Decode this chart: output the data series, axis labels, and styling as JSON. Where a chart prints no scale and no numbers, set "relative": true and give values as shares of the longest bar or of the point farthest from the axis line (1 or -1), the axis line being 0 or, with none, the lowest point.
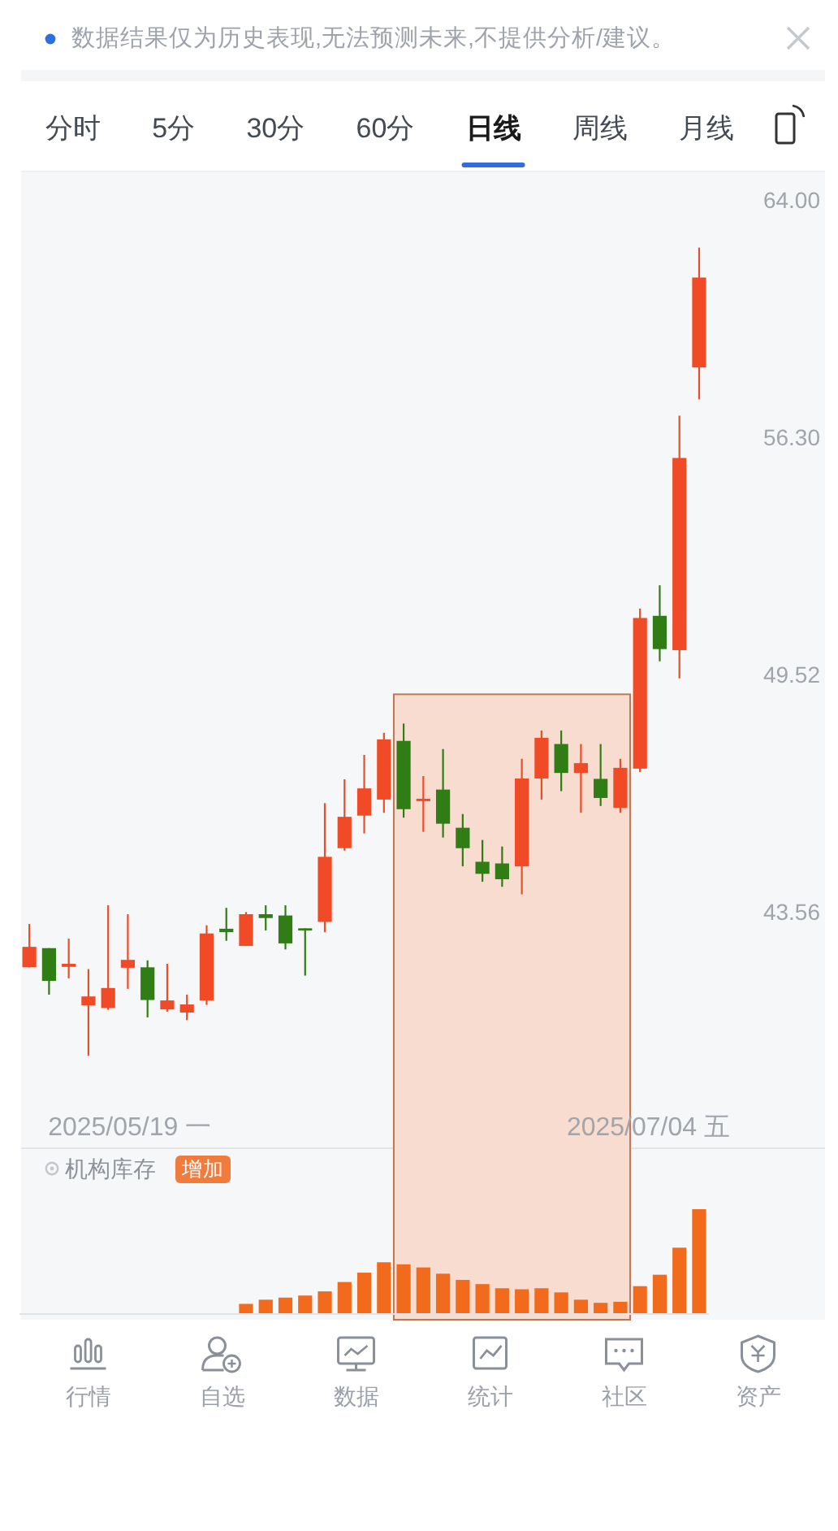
{
  "chart_data": [
    {
      "type": "other",
      "annotations": [
        "数据结果仅为历史表现,无法预测未来,不提供分析/建议。",
        "分时",
        "5分",
        "30分",
        "60分",
        "日线",
        "周线",
        "月线"
      ]
    },
    {
      "type": "candlestick",
      "annotations": [
        "2025/05/19 一",
        "2025/07/04 五"
      ],
      "categories": [
        null,
        null,
        null,
        null,
        null,
        null,
        null,
        null,
        null,
        null,
        null,
        null,
        null,
        null,
        null,
        null,
        null,
        null,
        null,
        null,
        null,
        null,
        null,
        null,
        null,
        null,
        null,
        null,
        null,
        null,
        null,
        null,
        null,
        null,
        null
      ],
      "ohlc": [
        [
          42.27,
          43.27,
          42.27,
          42.74
        ],
        [
          42.71,
          42.71,
          41.65,
          41.96
        ],
        [
          42.28,
          42.93,
          42.02,
          42.35
        ],
        [
          41.41,
          42.23,
          40.3,
          41.61
        ],
        [
          41.35,
          43.71,
          41.31,
          41.8
        ],
        [
          42.26,
          43.5,
          41.78,
          42.44
        ],
        [
          42.27,
          42.43,
          41.14,
          41.53
        ],
        [
          41.32,
          42.35,
          41.27,
          41.52
        ],
        [
          41.25,
          41.65,
          41.08,
          41.43
        ],
        [
          41.52,
          43.24,
          41.42,
          43.05
        ],
        [
          43.16,
          43.65,
          42.88,
          43.08
        ],
        [
          42.76,
          43.55,
          42.76,
          43.5
        ],
        [
          43.5,
          43.71,
          43.12,
          43.41
        ],
        [
          43.47,
          43.71,
          42.68,
          42.82
        ],
        [
          43.17,
          43.17,
          42.08,
          43.12
        ],
        [
          43.32,
          46.19,
          43.08,
          44.87
        ],
        [
          45.08,
          46.79,
          45.02,
          45.85
        ],
        [
          45.88,
          47.41,
          45.44,
          46.56
        ],
        [
          46.28,
          47.98,
          45.95,
          47.81
        ],
        [
          47.77,
          48.22,
          45.83,
          46.04
        ],
        [
          46.24,
          46.87,
          45.48,
          46.3
        ],
        [
          46.53,
          47.56,
          45.34,
          45.68
        ],
        [
          45.58,
          45.92,
          44.64,
          45.08
        ],
        [
          44.75,
          45.28,
          44.27,
          44.46
        ],
        [
          44.71,
          45.12,
          44.15,
          44.33
        ],
        [
          44.64,
          47.31,
          43.97,
          46.81
        ],
        [
          46.81,
          48.04,
          46.28,
          47.85
        ],
        [
          47.69,
          48.04,
          46.49,
          46.95
        ],
        [
          46.95,
          47.69,
          45.95,
          47.2
        ],
        [
          46.8,
          47.69,
          46.12,
          46.32
        ],
        [
          46.07,
          47.31,
          45.95,
          47.08
        ],
        [
          47.06,
          51.31,
          46.97,
          51.05
        ],
        [
          51.11,
          51.96,
          49.87,
          50.2
        ],
        [
          50.17,
          56.95,
          49.41,
          55.66
        ],
        [
          58.45,
          62.36,
          57.45,
          61.36
        ]
      ],
      "colors": [
        "#f04a26",
        "#2f7d14",
        "#f04a26",
        "#f04a26",
        "#f04a26",
        "#f04a26",
        "#2f7d14",
        "#f04a26",
        "#f04a26",
        "#f04a26",
        "#2f7d14",
        "#f04a26",
        "#2f7d14",
        "#2f7d14",
        "#2f7d14",
        "#f04a26",
        "#f04a26",
        "#f04a26",
        "#f04a26",
        "#2f7d14",
        "#f04a26",
        "#2f7d14",
        "#2f7d14",
        "#2f7d14",
        "#2f7d14",
        "#f04a26",
        "#f04a26",
        "#2f7d14",
        "#f04a26",
        "#2f7d14",
        "#f04a26",
        "#f04a26",
        "#2f7d14",
        "#f04a26",
        "#f04a26"
      ],
      "log": true,
      "ylim": [
        38.35,
        64.95
      ],
      "yticks": [
        {
          "value": 64,
          "label": "64.00"
        },
        {
          "value": 56.3,
          "label": "56.30"
        },
        49.52,
        43.56
      ]
    },
    {
      "type": "bar",
      "title": "机构库存",
      "annotations": [
        "增加"
      ],
      "categories": [
        null,
        null,
        null,
        null,
        null,
        null,
        null,
        null,
        null,
        null,
        null,
        null,
        null,
        null,
        null,
        null,
        null,
        null,
        null,
        null,
        null,
        null,
        null,
        null,
        null,
        null,
        null,
        null,
        null,
        null,
        null,
        null,
        null,
        null,
        null
      ],
      "values": [
        null,
        null,
        null,
        null,
        null,
        null,
        null,
        null,
        null,
        null,
        null,
        0.09,
        0.13,
        0.15,
        0.17,
        0.21,
        0.3,
        0.39,
        0.49,
        0.47,
        0.44,
        0.38,
        0.32,
        0.28,
        0.24,
        0.23,
        0.24,
        0.2,
        0.13,
        0.1,
        0.11,
        0.26,
        0.37,
        0.63,
        1
      ],
      "color": "#f26b1d",
      "relative": true
    },
    {
      "type": "other",
      "annotations": [
        "行情",
        "自选",
        "数据",
        "统计",
        "社区",
        "资产"
      ]
    }
  ]
}
